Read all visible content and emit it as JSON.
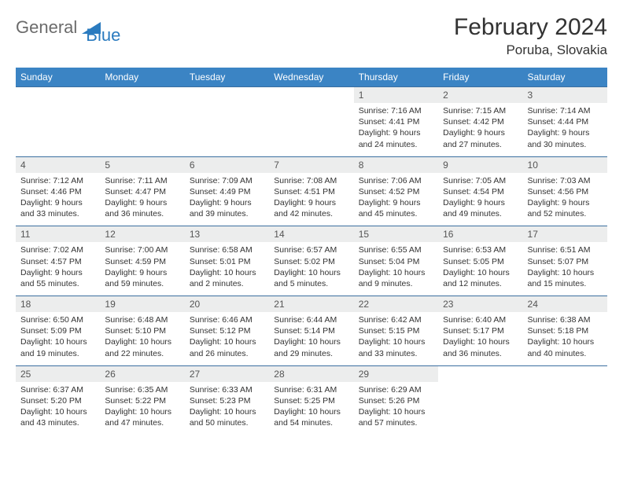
{
  "logo": {
    "general": "General",
    "blue": "Blue"
  },
  "title": "February 2024",
  "location": "Poruba, Slovakia",
  "colors": {
    "header_bg": "#3b84c4",
    "header_text": "#ffffff",
    "daynum_bg": "#eceded",
    "border": "#3b6fa0",
    "logo_gray": "#6b6b6b",
    "logo_blue": "#2b7bbf"
  },
  "day_names": [
    "Sunday",
    "Monday",
    "Tuesday",
    "Wednesday",
    "Thursday",
    "Friday",
    "Saturday"
  ],
  "weeks": [
    [
      null,
      null,
      null,
      null,
      {
        "n": "1",
        "sr": "Sunrise: 7:16 AM",
        "ss": "Sunset: 4:41 PM",
        "dl": "Daylight: 9 hours and 24 minutes."
      },
      {
        "n": "2",
        "sr": "Sunrise: 7:15 AM",
        "ss": "Sunset: 4:42 PM",
        "dl": "Daylight: 9 hours and 27 minutes."
      },
      {
        "n": "3",
        "sr": "Sunrise: 7:14 AM",
        "ss": "Sunset: 4:44 PM",
        "dl": "Daylight: 9 hours and 30 minutes."
      }
    ],
    [
      {
        "n": "4",
        "sr": "Sunrise: 7:12 AM",
        "ss": "Sunset: 4:46 PM",
        "dl": "Daylight: 9 hours and 33 minutes."
      },
      {
        "n": "5",
        "sr": "Sunrise: 7:11 AM",
        "ss": "Sunset: 4:47 PM",
        "dl": "Daylight: 9 hours and 36 minutes."
      },
      {
        "n": "6",
        "sr": "Sunrise: 7:09 AM",
        "ss": "Sunset: 4:49 PM",
        "dl": "Daylight: 9 hours and 39 minutes."
      },
      {
        "n": "7",
        "sr": "Sunrise: 7:08 AM",
        "ss": "Sunset: 4:51 PM",
        "dl": "Daylight: 9 hours and 42 minutes."
      },
      {
        "n": "8",
        "sr": "Sunrise: 7:06 AM",
        "ss": "Sunset: 4:52 PM",
        "dl": "Daylight: 9 hours and 45 minutes."
      },
      {
        "n": "9",
        "sr": "Sunrise: 7:05 AM",
        "ss": "Sunset: 4:54 PM",
        "dl": "Daylight: 9 hours and 49 minutes."
      },
      {
        "n": "10",
        "sr": "Sunrise: 7:03 AM",
        "ss": "Sunset: 4:56 PM",
        "dl": "Daylight: 9 hours and 52 minutes."
      }
    ],
    [
      {
        "n": "11",
        "sr": "Sunrise: 7:02 AM",
        "ss": "Sunset: 4:57 PM",
        "dl": "Daylight: 9 hours and 55 minutes."
      },
      {
        "n": "12",
        "sr": "Sunrise: 7:00 AM",
        "ss": "Sunset: 4:59 PM",
        "dl": "Daylight: 9 hours and 59 minutes."
      },
      {
        "n": "13",
        "sr": "Sunrise: 6:58 AM",
        "ss": "Sunset: 5:01 PM",
        "dl": "Daylight: 10 hours and 2 minutes."
      },
      {
        "n": "14",
        "sr": "Sunrise: 6:57 AM",
        "ss": "Sunset: 5:02 PM",
        "dl": "Daylight: 10 hours and 5 minutes."
      },
      {
        "n": "15",
        "sr": "Sunrise: 6:55 AM",
        "ss": "Sunset: 5:04 PM",
        "dl": "Daylight: 10 hours and 9 minutes."
      },
      {
        "n": "16",
        "sr": "Sunrise: 6:53 AM",
        "ss": "Sunset: 5:05 PM",
        "dl": "Daylight: 10 hours and 12 minutes."
      },
      {
        "n": "17",
        "sr": "Sunrise: 6:51 AM",
        "ss": "Sunset: 5:07 PM",
        "dl": "Daylight: 10 hours and 15 minutes."
      }
    ],
    [
      {
        "n": "18",
        "sr": "Sunrise: 6:50 AM",
        "ss": "Sunset: 5:09 PM",
        "dl": "Daylight: 10 hours and 19 minutes."
      },
      {
        "n": "19",
        "sr": "Sunrise: 6:48 AM",
        "ss": "Sunset: 5:10 PM",
        "dl": "Daylight: 10 hours and 22 minutes."
      },
      {
        "n": "20",
        "sr": "Sunrise: 6:46 AM",
        "ss": "Sunset: 5:12 PM",
        "dl": "Daylight: 10 hours and 26 minutes."
      },
      {
        "n": "21",
        "sr": "Sunrise: 6:44 AM",
        "ss": "Sunset: 5:14 PM",
        "dl": "Daylight: 10 hours and 29 minutes."
      },
      {
        "n": "22",
        "sr": "Sunrise: 6:42 AM",
        "ss": "Sunset: 5:15 PM",
        "dl": "Daylight: 10 hours and 33 minutes."
      },
      {
        "n": "23",
        "sr": "Sunrise: 6:40 AM",
        "ss": "Sunset: 5:17 PM",
        "dl": "Daylight: 10 hours and 36 minutes."
      },
      {
        "n": "24",
        "sr": "Sunrise: 6:38 AM",
        "ss": "Sunset: 5:18 PM",
        "dl": "Daylight: 10 hours and 40 minutes."
      }
    ],
    [
      {
        "n": "25",
        "sr": "Sunrise: 6:37 AM",
        "ss": "Sunset: 5:20 PM",
        "dl": "Daylight: 10 hours and 43 minutes."
      },
      {
        "n": "26",
        "sr": "Sunrise: 6:35 AM",
        "ss": "Sunset: 5:22 PM",
        "dl": "Daylight: 10 hours and 47 minutes."
      },
      {
        "n": "27",
        "sr": "Sunrise: 6:33 AM",
        "ss": "Sunset: 5:23 PM",
        "dl": "Daylight: 10 hours and 50 minutes."
      },
      {
        "n": "28",
        "sr": "Sunrise: 6:31 AM",
        "ss": "Sunset: 5:25 PM",
        "dl": "Daylight: 10 hours and 54 minutes."
      },
      {
        "n": "29",
        "sr": "Sunrise: 6:29 AM",
        "ss": "Sunset: 5:26 PM",
        "dl": "Daylight: 10 hours and 57 minutes."
      },
      null,
      null
    ]
  ]
}
